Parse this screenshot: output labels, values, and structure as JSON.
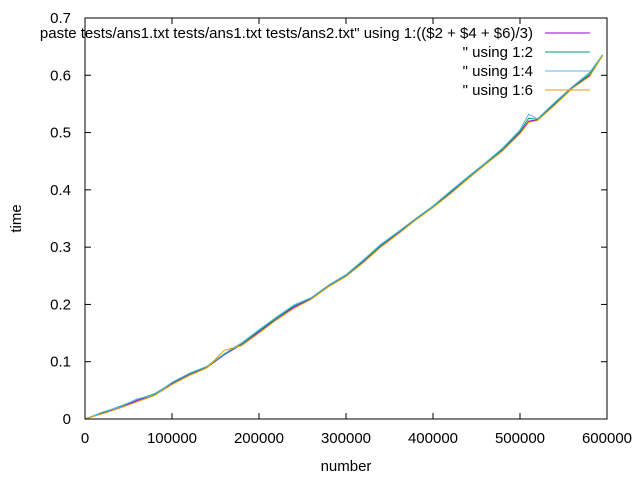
{
  "chart_data": {
    "type": "line",
    "title": "",
    "xlabel": "number",
    "ylabel": "time",
    "xlim": [
      0,
      600000
    ],
    "ylim": [
      0,
      0.7
    ],
    "x_ticks": [
      0,
      100000,
      200000,
      300000,
      400000,
      500000,
      600000
    ],
    "y_ticks": [
      0,
      0.1,
      0.2,
      0.3,
      0.4,
      0.5,
      0.6,
      0.7
    ],
    "x_tick_labels": [
      "0",
      "100000",
      "200000",
      "300000",
      "400000",
      "500000",
      "600000"
    ],
    "y_tick_labels": [
      "0",
      "0.1",
      "0.2",
      "0.3",
      "0.4",
      "0.5",
      "0.6",
      "0.7"
    ],
    "grid": false,
    "legend_position": "top-right",
    "series": [
      {
        "name": "paste tests/ans1.txt tests/ans1.txt tests/ans2.txt\" using 1:(($2 + $4 + $6)/3)",
        "color": "#9400d3",
        "x": [
          0,
          20000,
          40000,
          60000,
          80000,
          100000,
          120000,
          140000,
          160000,
          180000,
          200000,
          220000,
          240000,
          260000,
          280000,
          300000,
          320000,
          340000,
          360000,
          380000,
          400000,
          420000,
          440000,
          460000,
          480000,
          500000,
          510000,
          520000,
          540000,
          560000,
          580000,
          595000
        ],
        "y": [
          0,
          0.01,
          0.02,
          0.032,
          0.043,
          0.062,
          0.078,
          0.09,
          0.112,
          0.13,
          0.152,
          0.175,
          0.195,
          0.21,
          0.232,
          0.25,
          0.275,
          0.302,
          0.325,
          0.348,
          0.37,
          0.395,
          0.42,
          0.445,
          0.47,
          0.5,
          0.52,
          0.522,
          0.55,
          0.578,
          0.6,
          0.635
        ]
      },
      {
        "name": "\" using 1:2",
        "color": "#009e73",
        "x": [
          0,
          20000,
          40000,
          60000,
          80000,
          100000,
          120000,
          140000,
          160000,
          180000,
          200000,
          220000,
          240000,
          260000,
          280000,
          300000,
          320000,
          340000,
          360000,
          380000,
          400000,
          420000,
          440000,
          460000,
          480000,
          500000,
          510000,
          520000,
          540000,
          560000,
          580000,
          595000
        ],
        "y": [
          0,
          0.011,
          0.022,
          0.034,
          0.044,
          0.063,
          0.079,
          0.091,
          0.113,
          0.131,
          0.154,
          0.176,
          0.197,
          0.211,
          0.233,
          0.251,
          0.276,
          0.303,
          0.326,
          0.349,
          0.371,
          0.396,
          0.421,
          0.446,
          0.471,
          0.502,
          0.525,
          0.523,
          0.551,
          0.579,
          0.602,
          0.635
        ]
      },
      {
        "name": "\" using 1:4",
        "color": "#56b4e9",
        "x": [
          0,
          20000,
          40000,
          60000,
          80000,
          100000,
          120000,
          140000,
          160000,
          180000,
          200000,
          220000,
          240000,
          260000,
          280000,
          300000,
          320000,
          340000,
          360000,
          380000,
          400000,
          420000,
          440000,
          460000,
          480000,
          500000,
          510000,
          520000,
          540000,
          560000,
          580000,
          595000
        ],
        "y": [
          0,
          0.012,
          0.021,
          0.035,
          0.042,
          0.064,
          0.08,
          0.092,
          0.114,
          0.133,
          0.156,
          0.178,
          0.199,
          0.212,
          0.234,
          0.252,
          0.278,
          0.305,
          0.327,
          0.35,
          0.372,
          0.398,
          0.423,
          0.447,
          0.473,
          0.505,
          0.532,
          0.524,
          0.553,
          0.58,
          0.605,
          0.636
        ]
      },
      {
        "name": "\" using 1:6",
        "color": "#e69f00",
        "x": [
          0,
          20000,
          40000,
          60000,
          80000,
          100000,
          120000,
          140000,
          160000,
          180000,
          200000,
          220000,
          240000,
          260000,
          280000,
          300000,
          320000,
          340000,
          360000,
          380000,
          400000,
          420000,
          440000,
          460000,
          480000,
          500000,
          510000,
          520000,
          540000,
          560000,
          580000,
          595000
        ],
        "y": [
          0,
          0.009,
          0.019,
          0.03,
          0.041,
          0.06,
          0.076,
          0.089,
          0.12,
          0.128,
          0.15,
          0.173,
          0.193,
          0.209,
          0.231,
          0.249,
          0.273,
          0.3,
          0.323,
          0.347,
          0.369,
          0.393,
          0.419,
          0.444,
          0.468,
          0.498,
          0.518,
          0.521,
          0.548,
          0.577,
          0.598,
          0.634
        ]
      }
    ]
  }
}
